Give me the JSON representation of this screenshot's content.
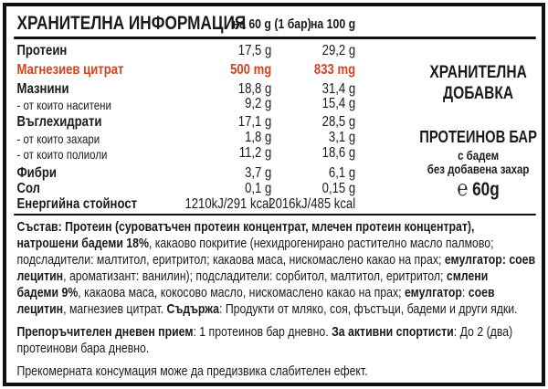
{
  "header": {
    "title": "ХРАНИТЕЛНА ИНФОРМАЦИЯ",
    "col1": "на 60 g (1 бар)",
    "col2": "на 100 g"
  },
  "rows": [
    {
      "label": "Протеин",
      "v1": "17,5 g",
      "v2": "29,2 g"
    },
    {
      "label": "Магнезиев цитрат",
      "v1": "500 mg",
      "v2": "833 mg"
    },
    {
      "label": "Мазнини",
      "v1": "18,8 g",
      "v2": "31,4 g"
    },
    {
      "label": "- от които наситени",
      "v1": "9,2 g",
      "v2": "15,4 g"
    },
    {
      "label": "Въглехидрати",
      "v1": "17,1 g",
      "v2": "28,5 g"
    },
    {
      "label": "- от които захари",
      "v1": "1,8 g",
      "v2": "3,1 g"
    },
    {
      "label": "- от които полиоли",
      "v1": "11,2 g",
      "v2": "18,6 g"
    },
    {
      "label": "Фибри",
      "v1": "3,7 g",
      "v2": "6,1 g"
    },
    {
      "label": "Сол",
      "v1": "0,1 g",
      "v2": "0,15 g"
    },
    {
      "label": "Енергийна стойност",
      "v1": "1210kJ/291 kcal",
      "v2": "2016kJ/485 kcal"
    }
  ],
  "highlight_color": "#d1441c",
  "side": {
    "supplement_line1": "ХРАНИТЕЛНА",
    "supplement_line2": "ДОБАВКА",
    "product": "ПРОТЕИНОВ БАР",
    "sub1": "с бадем",
    "sub2": "без добавена захар",
    "e_mark": "℮",
    "weight": "60g"
  },
  "composition": {
    "l1b": "Състав: Протеин (суроватъчен протеин концентрат, млечен протеин концентрат),",
    "l2b": "натрошени  бадеми 18%",
    "l2": ", какаово покритие (нехидрогенирано растително масло палмово;",
    "l3": "подсладители: малтитол, еритритол; какаова маса, нискомаслено какао на прах; ",
    "l3b": "емулгатор: соев",
    "l4b": "лецитин",
    "l4": ", ароматизант: ванилин); подсладители: сорбитол, малтитол, еритритол; ",
    "l4b2": "смлени",
    "l5b": "бадеми 9%",
    "l5": ", какаова маса, кокосово масло, нискомаслено какао на прах; ",
    "l5b2": "емулгатор",
    "l5c": ": ",
    "l5b3": "соев",
    "l6b": "лецитин",
    "l6": ", магнезиев цитрат. ",
    "l6b2": "Съдържа",
    "l6c": ": Продукти от мляко, соя, фъстъци, бадеми и други ядки."
  },
  "recommendation": {
    "b1": "Препоръчителен дневен прием",
    "t1": ": 1 протеинов бар дневно. ",
    "b2": "За активни спортисти",
    "t2": ": До 2 (два)",
    "t3": "протеинови бара дневно."
  },
  "warning": "Прекомерната консумация може да предизвика слабителен ефект."
}
